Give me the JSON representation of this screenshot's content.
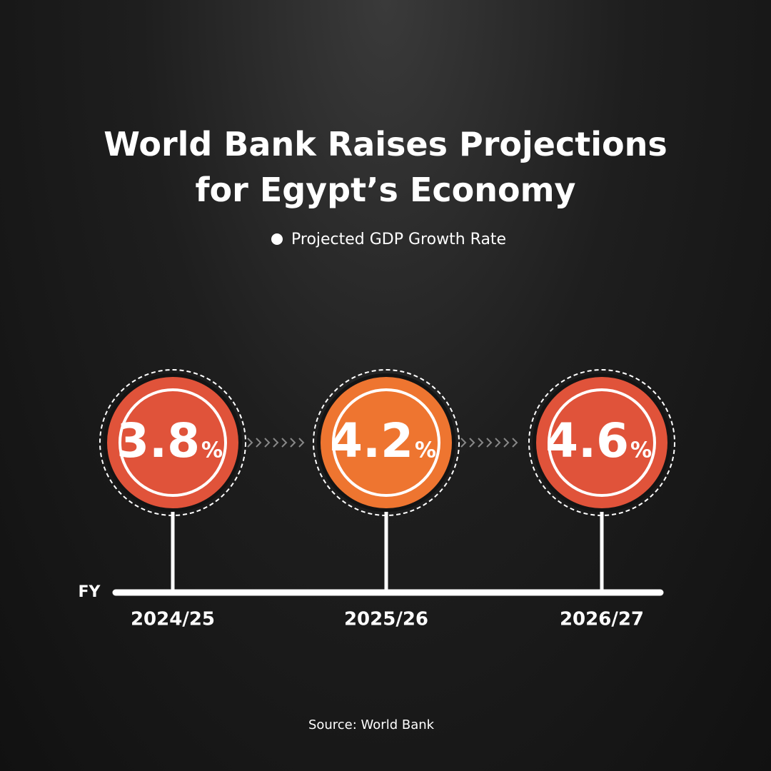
{
  "chart_data": {
    "type": "timeline",
    "title": "World Bank Raises Projections for Egypt’s Economy",
    "legend": "Projected GDP Growth Rate",
    "x_label": "FY",
    "categories": [
      "2024/25",
      "2025/26",
      "2026/27"
    ],
    "values": [
      3.8,
      4.2,
      4.6
    ],
    "unit": "%",
    "colors": [
      "#e0533a",
      "#ee7530",
      "#e0533a"
    ],
    "source": "Source: World Bank"
  }
}
